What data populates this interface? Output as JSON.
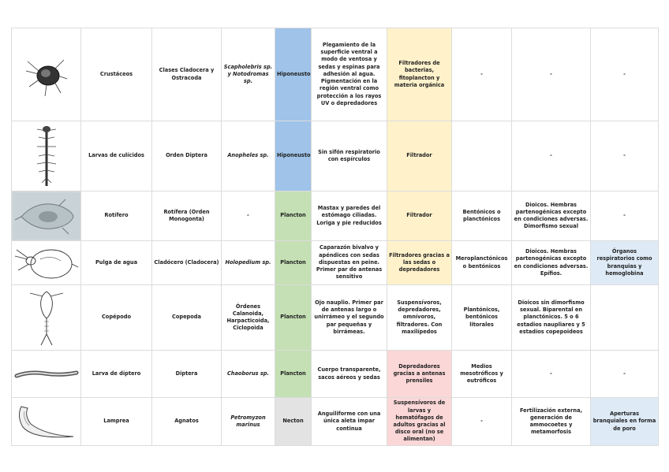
{
  "rows": [
    {
      "organism": "Crustáceos",
      "taxon": "Clases Cladocera y Ostracoda",
      "species": "Scapholebris sp. y Notodromas sp.",
      "habitat": "Hiponeusto",
      "adaptations": "Plegamiento de la superficie ventral a modo de ventosa y sedas y espinas para adhesión al agua. Pigmentación en la región ventral como protección a los rayos UV o depredadores",
      "feeding": "Filtradores de bacterias, fitoplancton y materia orgánica",
      "zone": "-",
      "reproduction": "-",
      "respiration": "-"
    },
    {
      "organism": "Larvas de culícidos",
      "taxon": "Orden Diptera",
      "species": "Anopheles sp.",
      "habitat": "Hiponeusto",
      "adaptations": "Sin sifón respiratorio con espírculos",
      "feeding": "Filtrador",
      "zone": "",
      "reproduction": "-",
      "respiration": "-"
    },
    {
      "organism": "Rotífero",
      "taxon": "Rotífera (Orden Monogonta)",
      "species": "-",
      "habitat": "Plancton",
      "adaptations": "Mastax y paredes del estómago ciliadas. Loriga y pie reducidos",
      "feeding": "Filtrador",
      "zone": "Bentónicos o planctónicos",
      "reproduction": "Dioicos. Hembras partenogénicas excepto en condiciones adversas. Dimorfismo sexual",
      "respiration": "-"
    },
    {
      "organism": "Pulga de agua",
      "taxon": "Cladócero (Cladocera)",
      "species": "Holopedium sp.",
      "habitat": "Plancton",
      "adaptations": "Caparazón bivalvo y apéndices con sedas dispuestas en peine. Primer par de antenas sensitivo",
      "feeding": "Filtradores gracias a las sedas o depredadores",
      "zone": "Meroplanctónicos o bentónicos",
      "reproduction": "Dioicos. Hembras partenogénicas excepto en condiciones adversas. Epífios.",
      "respiration": "Órganos respiratorios como branquias y hemoglobina"
    },
    {
      "organism": "Copépodo",
      "taxon": "Copepoda",
      "species": "Órdenes Calanoida, Harpacticoida, Ciclopoida",
      "habitat": "Plancton",
      "adaptations": "Ojo nauplio. Primer par de antenas largo o unirrámeo y el segundo par pequeñas y birrámeas.",
      "feeding": "Suspensívoros, depredadores, omnívoros, filtradores. Con maxilípedos",
      "zone": "Plantónicos, bentónicos litorales",
      "reproduction": "Dioicos sin dimorfismo sexual. Biparental en planctónicos. 5 o 6 estadios naupliares y 5 estadíos copepoideos",
      "respiration": ""
    },
    {
      "organism": "Larva de díptero",
      "taxon": "Diptera",
      "species": "Chaoborus sp.",
      "habitat": "Plancton",
      "adaptations": "Cuerpo transparente, sacos aéreos y sedas",
      "feeding": "Depredadores gracias a antenas prensiles",
      "zone": "Medios mesotróficos y eutróficos",
      "reproduction": "-",
      "respiration": "-"
    },
    {
      "organism": "Lamprea",
      "taxon": "Agnatos",
      "species": "Petromyzon marinus",
      "habitat": "Necton",
      "adaptations": "Anguiliforme con una única aleta impar continua",
      "feeding": "Suspensívoros de larvas y hematófagos de adultos gracias al disco oral (no se alimentan)",
      "zone": "-",
      "reproduction": "Fertilización externa, generación de ammocoetes y metamorfosis",
      "respiration": "Aperturas branquiales en forma de poro"
    }
  ]
}
